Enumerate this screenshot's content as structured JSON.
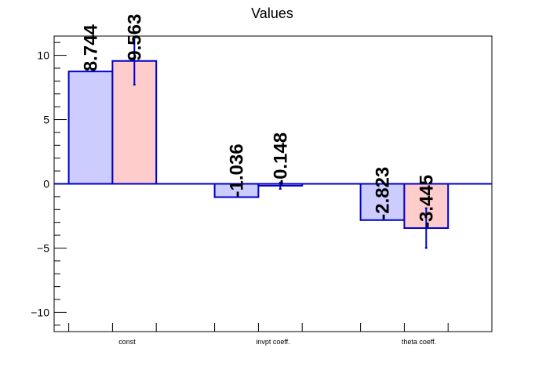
{
  "chart_data": {
    "type": "bar",
    "title": "Values",
    "xlabel": "",
    "ylabel": "",
    "categories": [
      "const",
      "invpt coeff.",
      "theta coeff."
    ],
    "ylim": [
      -11.5,
      11.5
    ],
    "yticks": [
      -10,
      -5,
      0,
      5,
      10
    ],
    "grid": false,
    "series": [
      {
        "values": [
          8.744,
          -1.036,
          -2.823
        ],
        "labels": [
          "8.744",
          "-1.036",
          "-2.823"
        ],
        "errors": [
          0,
          0,
          0
        ],
        "fill": "#ccccff",
        "stroke": "#0000cc"
      },
      {
        "values": [
          9.563,
          -0.148,
          -3.445
        ],
        "labels": [
          "9.563",
          "-0.148",
          "-3.445"
        ],
        "errors": [
          1.85,
          0.25,
          1.55
        ],
        "fill": "#ffcccc",
        "stroke": "#0000cc"
      }
    ]
  }
}
